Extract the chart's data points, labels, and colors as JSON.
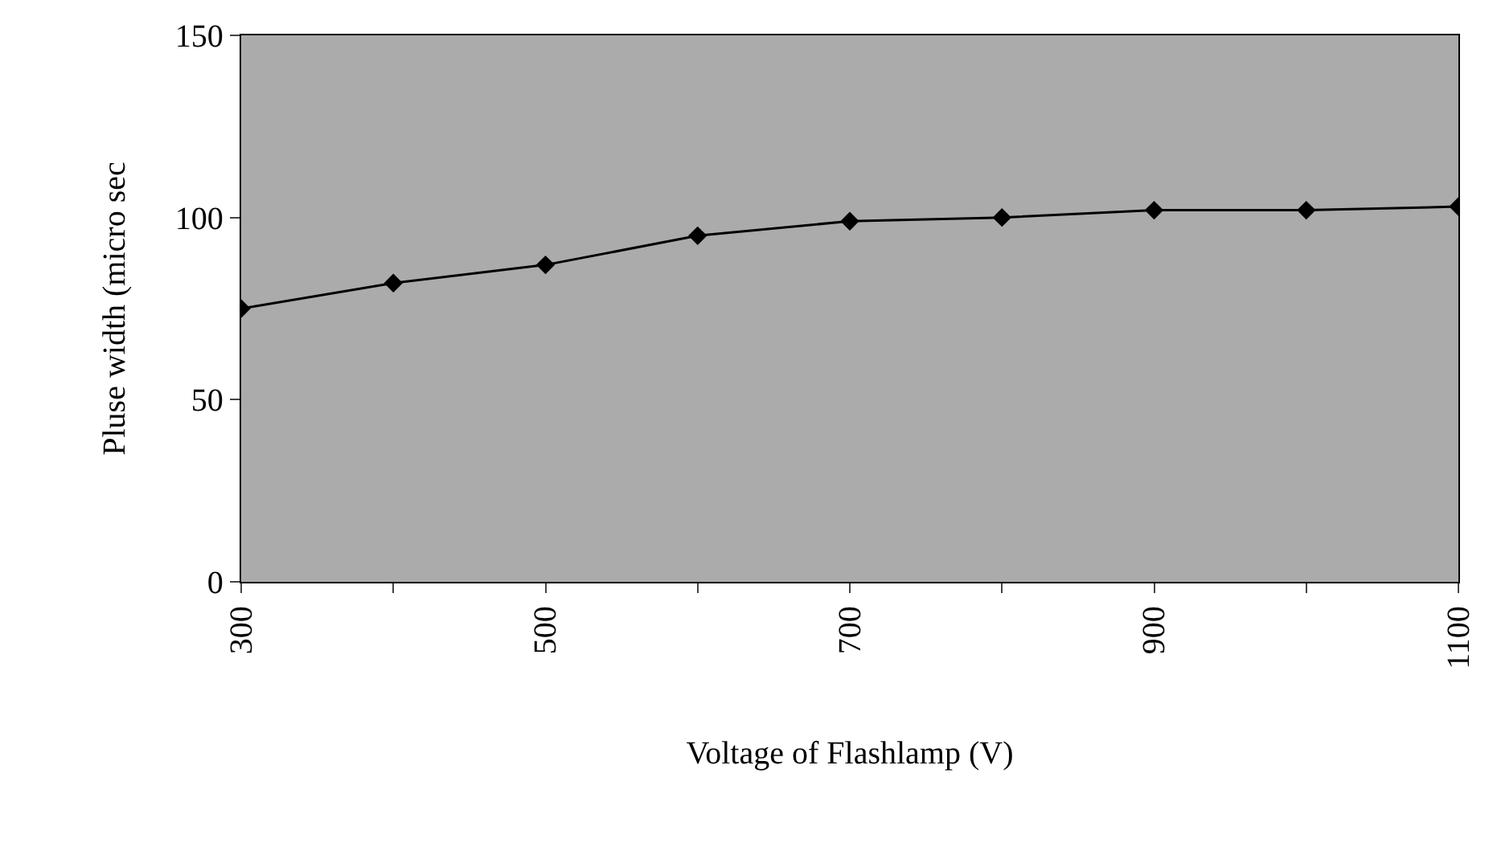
{
  "chart_data": {
    "type": "line",
    "xlabel": "Voltage of Flashlamp (V)",
    "ylabel": "Pluse width (micro sec",
    "x": [
      300,
      400,
      500,
      600,
      700,
      800,
      900,
      1000,
      1100
    ],
    "series": [
      {
        "color": "#000000",
        "values": [
          75,
          82,
          87,
          95,
          99,
          100,
          102,
          102,
          103
        ]
      }
    ],
    "xlim": [
      300,
      1100
    ],
    "xticks": [
      300,
      {
        "value": 400,
        "label": null
      },
      500,
      {
        "value": 600,
        "label": null
      },
      700,
      {
        "value": 800,
        "label": null
      },
      900,
      {
        "value": 1000,
        "label": null
      },
      1100
    ],
    "ylim": [
      0,
      150
    ],
    "yticks": [
      0,
      50,
      100,
      150
    ],
    "marker": "diamond",
    "line_style": "solid"
  }
}
